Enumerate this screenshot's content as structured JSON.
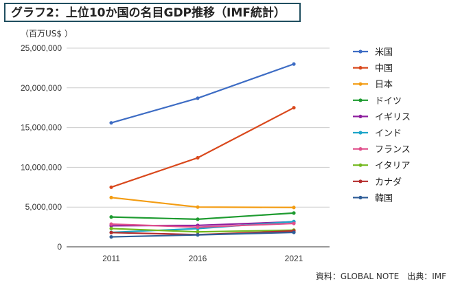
{
  "header": {
    "title": "グラフ2：上位10か国の名目GDP推移（IMF統計）"
  },
  "unit_label": "（百万US$ ）",
  "source": "資料：GLOBAL NOTE　出典：IMF",
  "chart_data": {
    "type": "line",
    "title": "グラフ2：上位10か国の名目GDP推移（IMF統計）",
    "xlabel": "",
    "ylabel": "（百万US$ ）",
    "x": [
      "2011",
      "2016",
      "2021"
    ],
    "ylim": [
      0,
      25000000
    ],
    "yticks": [
      0,
      5000000,
      10000000,
      15000000,
      20000000,
      25000000
    ],
    "ytick_labels": [
      "0",
      "5,000,000",
      "10,000,000",
      "15,000,000",
      "20,000,000",
      "25,000,000"
    ],
    "grid": true,
    "legend_position": "right",
    "series": [
      {
        "name": "米国",
        "color": "#3d6cc4",
        "values": [
          15600000,
          18700000,
          23000000
        ]
      },
      {
        "name": "中国",
        "color": "#d9481c",
        "values": [
          7500000,
          11200000,
          17500000
        ]
      },
      {
        "name": "日本",
        "color": "#f39c12",
        "values": [
          6200000,
          5000000,
          4950000
        ]
      },
      {
        "name": "ドイツ",
        "color": "#1e9b30",
        "values": [
          3750000,
          3470000,
          4250000
        ]
      },
      {
        "name": "イギリス",
        "color": "#8e1e9e",
        "values": [
          2650000,
          2700000,
          3150000
        ]
      },
      {
        "name": "インド",
        "color": "#1ca5c9",
        "values": [
          1820000,
          2290000,
          3180000
        ]
      },
      {
        "name": "フランス",
        "color": "#e0508c",
        "values": [
          2860000,
          2470000,
          2940000
        ]
      },
      {
        "name": "イタリア",
        "color": "#73b81e",
        "values": [
          2300000,
          1880000,
          2100000
        ]
      },
      {
        "name": "カナダ",
        "color": "#b52d2d",
        "values": [
          1790000,
          1530000,
          2000000
        ]
      },
      {
        "name": "韓国",
        "color": "#2f5e98",
        "values": [
          1250000,
          1500000,
          1810000
        ]
      }
    ]
  }
}
